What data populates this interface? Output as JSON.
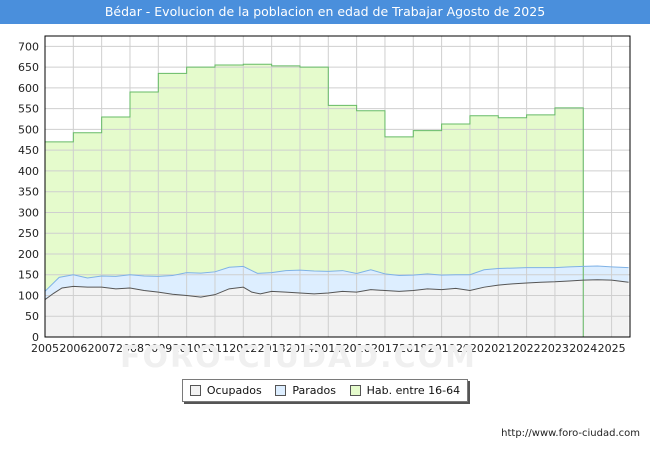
{
  "title": "Bédar - Evolucion de la poblacion en edad de Trabajar Agosto de 2025",
  "footer_url": "http://www.foro-ciudad.com",
  "watermark": "FORO-CIUDAD.COM",
  "colors": {
    "title_bg": "#4a8fdc",
    "ocupados_fill": "#f2f2f2",
    "ocupados_line": "#555555",
    "parados_fill": "#ddeeff",
    "parados_line": "#7fb2e6",
    "hab_fill": "#e5fbcc",
    "hab_line": "#66bb66",
    "grid": "#cfcfcf"
  },
  "legend": [
    {
      "label": "Ocupados",
      "swatch": "ocupados"
    },
    {
      "label": "Parados",
      "swatch": "parados"
    },
    {
      "label": "Hab. entre 16-64",
      "swatch": "hab"
    }
  ],
  "chart_data": {
    "type": "area",
    "title": "Bédar - Evolucion de la poblacion en edad de Trabajar Agosto de 2025",
    "xlabel": "",
    "ylabel": "",
    "xlim": [
      2005,
      2025.65
    ],
    "ylim": [
      0,
      725
    ],
    "x_ticks": [
      2005,
      2006,
      2007,
      2008,
      2009,
      2010,
      2011,
      2012,
      2013,
      2014,
      2015,
      2016,
      2017,
      2018,
      2019,
      2020,
      2021,
      2022,
      2023,
      2024,
      2025
    ],
    "y_ticks": [
      0,
      50,
      100,
      150,
      200,
      250,
      300,
      350,
      400,
      450,
      500,
      550,
      600,
      650,
      700
    ],
    "grid": true,
    "legend_position": "bottom-center",
    "series": [
      {
        "name": "Hab. entre 16-64",
        "style": "step",
        "points": [
          [
            2005,
            470
          ],
          [
            2006,
            492
          ],
          [
            2007,
            530
          ],
          [
            2008,
            590
          ],
          [
            2009,
            635
          ],
          [
            2010,
            650
          ],
          [
            2011,
            655
          ],
          [
            2012,
            657
          ],
          [
            2013,
            653
          ],
          [
            2014,
            650
          ],
          [
            2015,
            558
          ],
          [
            2016,
            545
          ],
          [
            2017,
            482
          ],
          [
            2018,
            497
          ],
          [
            2019,
            513
          ],
          [
            2020,
            533
          ],
          [
            2021,
            528
          ],
          [
            2022,
            535
          ],
          [
            2023,
            552
          ]
        ],
        "end_x": 2024
      },
      {
        "name": "Parados",
        "style": "band",
        "points": [
          [
            2005,
            20
          ],
          [
            2005.5,
            30
          ],
          [
            2006,
            28
          ],
          [
            2006.5,
            22
          ],
          [
            2007,
            27
          ],
          [
            2007.5,
            30
          ],
          [
            2008,
            32
          ],
          [
            2008.5,
            35
          ],
          [
            2009,
            38
          ],
          [
            2009.5,
            45
          ],
          [
            2010,
            55
          ],
          [
            2010.5,
            58
          ],
          [
            2011,
            55
          ],
          [
            2011.5,
            52
          ],
          [
            2012,
            50
          ],
          [
            2012.5,
            48
          ],
          [
            2013,
            45
          ],
          [
            2013.5,
            52
          ],
          [
            2014,
            55
          ],
          [
            2014.5,
            55
          ],
          [
            2015,
            52
          ],
          [
            2015.5,
            50
          ],
          [
            2016,
            45
          ],
          [
            2016.5,
            48
          ],
          [
            2017,
            40
          ],
          [
            2017.5,
            38
          ],
          [
            2018,
            37
          ],
          [
            2018.5,
            36
          ],
          [
            2019,
            35
          ],
          [
            2019.5,
            33
          ],
          [
            2020,
            38
          ],
          [
            2020.5,
            42
          ],
          [
            2021,
            40
          ],
          [
            2021.5,
            38
          ],
          [
            2022,
            37
          ],
          [
            2022.5,
            35
          ],
          [
            2023,
            34
          ],
          [
            2023.5,
            34
          ],
          [
            2024,
            33
          ],
          [
            2024.5,
            33
          ],
          [
            2025,
            32
          ],
          [
            2025.6,
            35
          ]
        ]
      },
      {
        "name": "Ocupados",
        "style": "line",
        "points": [
          [
            2005,
            90
          ],
          [
            2005.3,
            105
          ],
          [
            2005.6,
            118
          ],
          [
            2006,
            122
          ],
          [
            2006.5,
            120
          ],
          [
            2007,
            120
          ],
          [
            2007.5,
            116
          ],
          [
            2008,
            118
          ],
          [
            2008.5,
            112
          ],
          [
            2009,
            108
          ],
          [
            2009.5,
            103
          ],
          [
            2010,
            100
          ],
          [
            2010.5,
            96
          ],
          [
            2011,
            102
          ],
          [
            2011.5,
            116
          ],
          [
            2012,
            120
          ],
          [
            2012.3,
            108
          ],
          [
            2012.6,
            104
          ],
          [
            2013,
            110
          ],
          [
            2013.5,
            108
          ],
          [
            2014,
            106
          ],
          [
            2014.5,
            104
          ],
          [
            2015,
            106
          ],
          [
            2015.5,
            110
          ],
          [
            2016,
            108
          ],
          [
            2016.5,
            114
          ],
          [
            2017,
            112
          ],
          [
            2017.5,
            110
          ],
          [
            2018,
            112
          ],
          [
            2018.5,
            116
          ],
          [
            2019,
            114
          ],
          [
            2019.5,
            117
          ],
          [
            2020,
            112
          ],
          [
            2020.5,
            120
          ],
          [
            2021,
            125
          ],
          [
            2021.5,
            128
          ],
          [
            2022,
            130
          ],
          [
            2022.5,
            132
          ],
          [
            2023,
            133
          ],
          [
            2023.5,
            135
          ],
          [
            2024,
            137
          ],
          [
            2024.5,
            138
          ],
          [
            2025,
            137
          ],
          [
            2025.6,
            132
          ]
        ]
      }
    ]
  }
}
